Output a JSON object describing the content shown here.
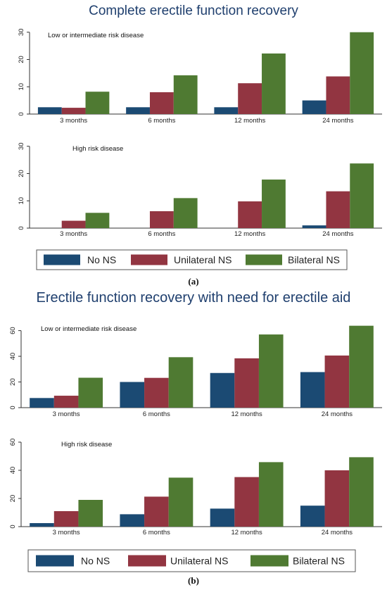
{
  "colors": {
    "no_ns": "#1b4a73",
    "unilateral_ns": "#923541",
    "bilateral_ns": "#4f7a32"
  },
  "figures": [
    {
      "title": "Complete erectile function recovery",
      "caption": "(a)"
    },
    {
      "title": "Erectile function recovery with need for erectile aid",
      "caption": "(b)"
    }
  ],
  "chart_data": [
    {
      "type": "bar",
      "title": "Complete erectile function recovery",
      "subtitle": "Low or intermediate risk disease",
      "categories": [
        "3 months",
        "6 months",
        "12 months",
        "24 months"
      ],
      "series": [
        {
          "name": "No NS",
          "values": [
            2.5,
            2.5,
            2.5,
            5
          ]
        },
        {
          "name": "Unilateral NS",
          "values": [
            2.3,
            8,
            11.3,
            13.8
          ]
        },
        {
          "name": "Bilateral NS",
          "values": [
            8.2,
            14.2,
            22.2,
            30
          ]
        }
      ],
      "ylim": [
        0,
        32
      ],
      "yticks": [
        0,
        10,
        20,
        30
      ],
      "grid": false,
      "legend": "bottom"
    },
    {
      "type": "bar",
      "subtitle": "High risk disease",
      "categories": [
        "3 months",
        "6 months",
        "12 months",
        "24 months"
      ],
      "series": [
        {
          "name": "No NS",
          "values": [
            0,
            0,
            0,
            1
          ]
        },
        {
          "name": "Unilateral NS",
          "values": [
            2.7,
            6.2,
            9.8,
            13.5
          ]
        },
        {
          "name": "Bilateral NS",
          "values": [
            5.6,
            11,
            17.8,
            23.7
          ]
        }
      ],
      "ylim": [
        0,
        32
      ],
      "yticks": [
        0,
        10,
        20,
        30
      ],
      "grid": false,
      "legend": "bottom"
    },
    {
      "type": "bar",
      "title": "Erectile function recovery with need for erectile aid",
      "subtitle": "Low or intermediate risk disease",
      "categories": [
        "3 months",
        "6 months",
        "12 months",
        "24 months"
      ],
      "series": [
        {
          "name": "No NS",
          "values": [
            7.5,
            20,
            27,
            27.7
          ]
        },
        {
          "name": "Unilateral NS",
          "values": [
            9.3,
            23.2,
            38.4,
            40.6
          ]
        },
        {
          "name": "Bilateral NS",
          "values": [
            23.3,
            39.3,
            57,
            63.8
          ]
        }
      ],
      "ylim": [
        0,
        68
      ],
      "yticks": [
        0,
        20,
        40,
        60
      ],
      "grid": false,
      "legend": "bottom"
    },
    {
      "type": "bar",
      "subtitle": "High risk disease",
      "categories": [
        "3 months",
        "6 months",
        "12 months",
        "24 months"
      ],
      "series": [
        {
          "name": "No NS",
          "values": [
            2.5,
            8.8,
            12.8,
            14.9
          ]
        },
        {
          "name": "Unilateral NS",
          "values": [
            11,
            21.3,
            35.2,
            40
          ]
        },
        {
          "name": "Bilateral NS",
          "values": [
            19,
            34.8,
            45.8,
            49.3
          ]
        }
      ],
      "ylim": [
        0,
        64
      ],
      "yticks": [
        0,
        20,
        40,
        60
      ],
      "grid": false,
      "legend": "bottom"
    }
  ]
}
